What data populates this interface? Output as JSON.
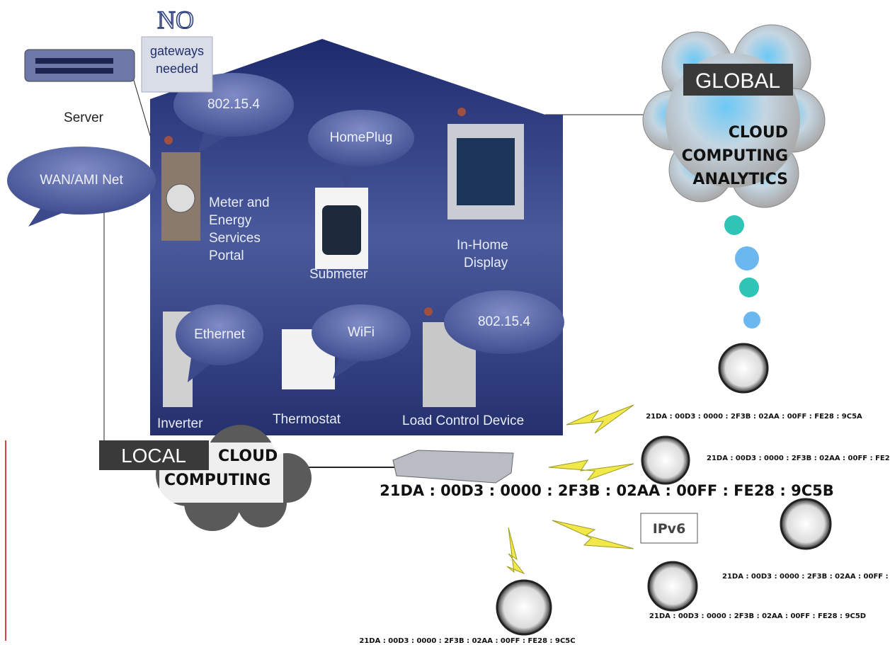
{
  "gateway_note": {
    "headline": "NO",
    "lines": [
      "gateways",
      "needed"
    ]
  },
  "server": {
    "label": "Server"
  },
  "bubbles": [
    "WAN/AMI Net",
    "802.15.4",
    "HomePlug",
    "Ethernet",
    "WiFi",
    "802.15.4"
  ],
  "devices": [
    {
      "lines": [
        "Meter and",
        "Energy",
        "Services",
        "Portal"
      ]
    },
    {
      "lines": [
        "Submeter"
      ]
    },
    {
      "lines": [
        "In-Home",
        "Display"
      ]
    },
    {
      "lines": [
        "Inverter"
      ]
    },
    {
      "lines": [
        "Thermostat"
      ]
    },
    {
      "lines": [
        "Load Control Device"
      ]
    }
  ],
  "global_cloud": {
    "badge": "GLOBAL",
    "lines": [
      "CLOUD",
      "COMPUTING",
      "ANALYTICS"
    ]
  },
  "local_cloud": {
    "badge": "LOCAL",
    "lines": [
      "CLOUD",
      "COMPUTING"
    ]
  },
  "router_address": "21DA : 00D3 : 0000 : 2F3B : 02AA : 00FF : FE28 : 9C5B",
  "protocol": "IPv6",
  "meters": [
    {
      "address": "21DA : 00D3 : 0000 : 2F3B : 02AA : 00FF : FE28 : 9C5A"
    },
    {
      "address": "21DA : 00D3 : 0000 : 2F3B : 02AA : 00FF : FE2"
    },
    {
      "address": "21DA : 00D3 : 0000 : 2F3B : 02AA : 00FF :"
    },
    {
      "address": "21DA : 00D3 : 0000 : 2F3B : 02AA : 00FF : FE28 : 9C5D"
    },
    {
      "address": "21DA : 00D3 : 0000 : 2F3B : 02AA : 00FF : FE28 : 9C5C"
    }
  ]
}
